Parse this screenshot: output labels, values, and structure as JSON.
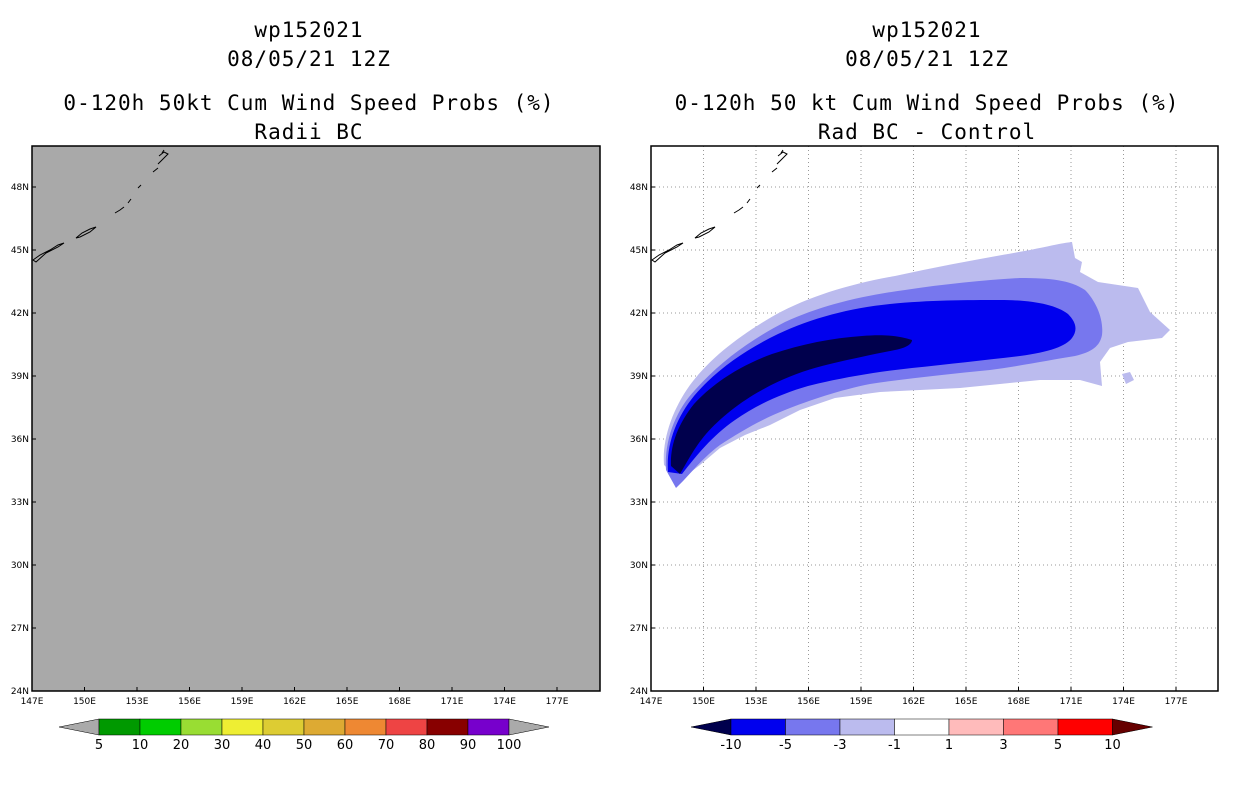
{
  "chart_data": [
    {
      "type": "heatmap",
      "storm_id": "wp152021",
      "date": "08/05/21 12Z",
      "title": "0-120h 50kt Cum Wind Speed Probs (%)",
      "subtitle": "Radii BC",
      "panel_fill": "#a9a9a9",
      "lon_ticks": [
        "147E",
        "150E",
        "153E",
        "156E",
        "159E",
        "162E",
        "165E",
        "168E",
        "171E",
        "174E",
        "177E"
      ],
      "lat_ticks": [
        "24N",
        "27N",
        "30N",
        "33N",
        "36N",
        "39N",
        "42N",
        "45N",
        "48N"
      ],
      "lon_range": [
        147,
        179.5
      ],
      "lat_range": [
        24,
        50
      ],
      "colorbar": {
        "labels": [
          "5",
          "10",
          "20",
          "30",
          "40",
          "50",
          "60",
          "70",
          "80",
          "90",
          "100"
        ],
        "colors": [
          "#009900",
          "#00cc00",
          "#99dd33",
          "#eeee33",
          "#ddcc33",
          "#ddaa33",
          "#ee8833",
          "#ee4444",
          "#880000",
          "#7700cc"
        ],
        "end_color": "#aaaaaa"
      },
      "data_note": "No probability values shown; entire domain grey"
    },
    {
      "type": "heatmap",
      "storm_id": "wp152021",
      "date": "08/05/21 12Z",
      "title": "0-120h 50 kt Cum Wind Speed Probs (%)",
      "subtitle": "Rad BC - Control",
      "lon_ticks": [
        "147E",
        "150E",
        "153E",
        "156E",
        "159E",
        "162E",
        "165E",
        "168E",
        "171E",
        "174E",
        "177E"
      ],
      "lat_ticks": [
        "24N",
        "27N",
        "30N",
        "33N",
        "36N",
        "39N",
        "42N",
        "45N",
        "48N"
      ],
      "lon_range": [
        147,
        179.5
      ],
      "lat_range": [
        24,
        50
      ],
      "grid": true,
      "colorbar": {
        "labels": [
          "-10",
          "-5",
          "-3",
          "-1",
          "1",
          "3",
          "5",
          "10"
        ],
        "colors": [
          "#0000ee",
          "#7777ee",
          "#bbbbee",
          "#ffffff",
          "#ffbbbb",
          "#ff7777",
          "#ff0000"
        ],
        "low_color": "#00004d",
        "high_color": "#660000"
      },
      "difference_regions": [
        {
          "range": "-3 to -1",
          "color": "#bbbbee"
        },
        {
          "range": "-5 to -3",
          "color": "#7777ee"
        },
        {
          "range": "-10 to -5",
          "color": "#0000ee"
        },
        {
          "range": "< -10",
          "color": "#00004d"
        }
      ]
    }
  ]
}
